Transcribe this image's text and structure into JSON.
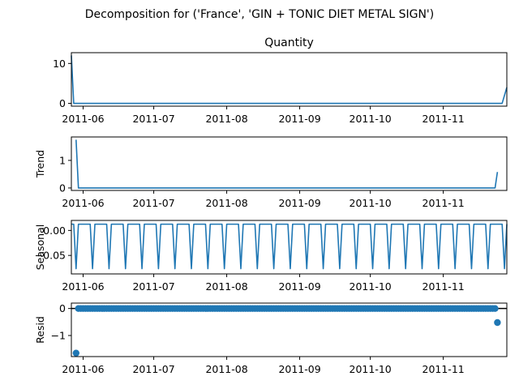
{
  "chart_data": {
    "suptitle": "Decomposition for ('France', 'GIN + TONIC DIET METAL SIGN')",
    "x_ticks": [
      "2011-06",
      "2011-07",
      "2011-08",
      "2011-09",
      "2011-10",
      "2011-11"
    ],
    "x_tick_dates": [
      "2011-06-01",
      "2011-07-01",
      "2011-08-01",
      "2011-09-01",
      "2011-10-01",
      "2011-11-01"
    ],
    "xlim": [
      "2011-05-27",
      "2011-11-28"
    ],
    "color": "#1f77b4",
    "panels": [
      {
        "type": "line",
        "title": "Quantity",
        "ylabel": "",
        "ylim": [
          -0.7,
          12.7
        ],
        "yticks": [
          0,
          10
        ],
        "series": [
          {
            "values": [
              {
                "x": "2011-05-27",
                "y": 12
              },
              {
                "x": "2011-05-28",
                "y": 0
              },
              {
                "x": "2011-11-26",
                "y": 0
              },
              {
                "x": "2011-11-28",
                "y": 4
              }
            ]
          }
        ]
      },
      {
        "type": "line",
        "title": "",
        "ylabel": "Trend",
        "ylim": [
          -0.09,
          1.85
        ],
        "yticks": [
          0,
          1
        ],
        "series": [
          {
            "values": [
              {
                "x": "2011-05-29",
                "y": 1.75
              },
              {
                "x": "2011-05-30",
                "y": 0
              },
              {
                "x": "2011-11-23",
                "y": 0
              },
              {
                "x": "2011-11-24",
                "y": 0.58
              }
            ]
          }
        ]
      },
      {
        "type": "line",
        "title": "",
        "ylabel": "Seasonal",
        "ylim": [
          -0.087,
          0.02
        ],
        "yticks": [
          0.0,
          -0.05
        ],
        "ytick_labels": [
          "0.00",
          "−0.05"
        ],
        "seasonal": {
          "period_days": 7,
          "high": 0.0125,
          "low": -0.0765,
          "first_low": "2011-05-29"
        }
      },
      {
        "type": "scatter",
        "title": "",
        "ylabel": "Resid",
        "ylim": [
          -1.78,
          0.2
        ],
        "yticks": [
          0,
          -1
        ],
        "ytick_labels": [
          "0",
          "−1"
        ],
        "zero_line": true,
        "resid": {
          "first": {
            "x": "2011-05-29",
            "y": -1.65
          },
          "last": {
            "x": "2011-11-24",
            "y": -0.52
          },
          "flat_from": "2011-05-30",
          "flat_to": "2011-11-23",
          "flat_value": 0
        }
      }
    ]
  }
}
